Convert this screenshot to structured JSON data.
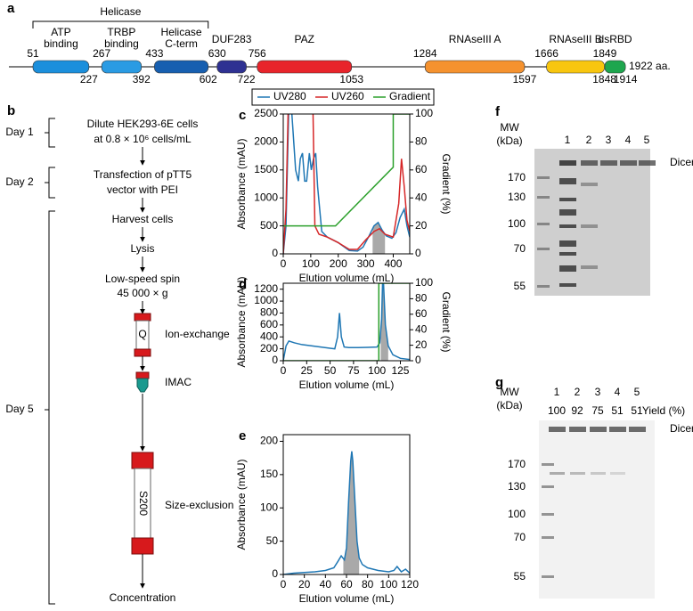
{
  "panel_a": {
    "label": "a",
    "group_label": "Helicase",
    "length_label": "1922 aa.",
    "domains": [
      {
        "name_lines": [
          "ATP",
          "binding"
        ],
        "start": 51,
        "end": 227,
        "color": "#1b8fdc"
      },
      {
        "name_lines": [
          "TRBP",
          "binding"
        ],
        "start": 267,
        "end": 392,
        "color": "#2a9be3"
      },
      {
        "name_lines": [
          "Helicase",
          "C-term"
        ],
        "start": 433,
        "end": 602,
        "color": "#175fb0"
      },
      {
        "name_lines": [
          "DUF283"
        ],
        "start": 630,
        "end": 722,
        "color": "#2e3192"
      },
      {
        "name_lines": [
          "PAZ"
        ],
        "start": 756,
        "end": 1053,
        "color": "#e8242b"
      },
      {
        "name_lines": [
          "RNAseIII A"
        ],
        "start": 1284,
        "end": 1597,
        "color": "#f5922f"
      },
      {
        "name_lines": [
          "RNAseIII B"
        ],
        "start": 1666,
        "end": 1848,
        "color": "#f8c60f"
      },
      {
        "name_lines": [
          "dsRBD"
        ],
        "start": 1849,
        "end": 1914,
        "color": "#1ea64e"
      }
    ]
  },
  "panel_b": {
    "label": "b",
    "column_labels": [
      "Q",
      "S200"
    ],
    "stages": [
      {
        "day": "Day 1",
        "steps": [
          [
            "Dilute HEK293-6E cells",
            "at 0.8 × 10⁶ cells/mL"
          ]
        ]
      },
      {
        "day": "Day 2",
        "steps": [
          [
            "Transfection of pTT5",
            "vector with PEI"
          ]
        ]
      },
      {
        "day": "Day 5",
        "steps": [
          [
            "Harvest cells"
          ],
          [
            "Lysis"
          ],
          [
            "Low-speed spin",
            "45 000 × g"
          ],
          [
            "Ion-exchange"
          ],
          [
            "IMAC"
          ],
          [
            "Size-exclusion"
          ],
          [
            "Concentration"
          ]
        ]
      }
    ]
  },
  "chart_data": [
    {
      "type": "line",
      "panel_label": "c",
      "xlabel": "Elution volume (mL)",
      "ylabel": "Absorbance (mAU)",
      "y2label": "Gradient (%)",
      "xlim": [
        0,
        460
      ],
      "xticks": [
        0,
        100,
        200,
        300,
        400
      ],
      "ylim": [
        0,
        2500
      ],
      "yticks": [
        0,
        500,
        1000,
        1500,
        2000,
        2500
      ],
      "y2lim": [
        0,
        100
      ],
      "y2ticks": [
        0,
        20,
        40,
        60,
        80,
        100
      ],
      "legend": "top",
      "shade": [
        325,
        370
      ],
      "series": [
        {
          "name": "UV280",
          "color": "#1f77b4",
          "x": [
            0,
            10,
            20,
            30,
            45,
            55,
            62,
            70,
            78,
            85,
            95,
            102,
            110,
            118,
            125,
            140,
            160,
            200,
            240,
            270,
            290,
            310,
            330,
            345,
            360,
            375,
            395,
            410,
            425,
            440,
            450,
            460
          ],
          "values": [
            0,
            500,
            2600,
            2600,
            1500,
            1300,
            1700,
            1800,
            1300,
            1300,
            1800,
            1500,
            1700,
            1800,
            1200,
            400,
            300,
            200,
            60,
            50,
            120,
            300,
            500,
            560,
            420,
            320,
            280,
            380,
            650,
            800,
            500,
            300
          ]
        },
        {
          "name": "UV260",
          "color": "#d62728",
          "x": [
            0,
            10,
            18,
            30,
            50,
            70,
            90,
            100,
            108,
            115,
            130,
            160,
            200,
            240,
            270,
            300,
            330,
            350,
            370,
            400,
            420,
            430,
            440,
            450,
            460
          ],
          "values": [
            0,
            800,
            2600,
            2600,
            2600,
            2600,
            2600,
            2600,
            2600,
            500,
            350,
            300,
            200,
            80,
            80,
            250,
            400,
            450,
            350,
            300,
            900,
            1700,
            1200,
            600,
            400
          ]
        },
        {
          "name": "Gradient",
          "color": "#2ca02c",
          "axis": "y2",
          "x": [
            0,
            190,
            400,
            400,
            460
          ],
          "values": [
            20,
            20,
            62,
            100,
            100
          ]
        }
      ]
    },
    {
      "type": "line",
      "panel_label": "d",
      "xlabel": "Elution volume (mL)",
      "ylabel": "Absorbance (mAU)",
      "y2label": "Gradient (%)",
      "xlim": [
        0,
        135
      ],
      "xticks": [
        0,
        25,
        50,
        75,
        100,
        125
      ],
      "ylim": [
        0,
        1300
      ],
      "yticks": [
        0,
        200,
        400,
        600,
        800,
        1000,
        1200
      ],
      "y2lim": [
        0,
        100
      ],
      "y2ticks": [
        0,
        20,
        40,
        60,
        80,
        100
      ],
      "shade": [
        104,
        112
      ],
      "series": [
        {
          "color": "#1f77b4",
          "x": [
            0,
            3,
            6,
            12,
            20,
            30,
            40,
            50,
            55,
            58,
            60,
            62,
            65,
            70,
            80,
            90,
            100,
            103,
            105,
            106,
            107,
            109,
            112,
            117,
            125,
            135
          ],
          "values": [
            0,
            250,
            330,
            300,
            270,
            250,
            230,
            210,
            200,
            400,
            800,
            400,
            230,
            220,
            220,
            225,
            230,
            300,
            700,
            1300,
            1300,
            600,
            250,
            100,
            40,
            20
          ]
        },
        {
          "color": "#2ca02c",
          "axis": "y2",
          "x": [
            0,
            102,
            102,
            135
          ],
          "values": [
            0,
            0,
            100,
            100
          ]
        }
      ]
    },
    {
      "type": "line",
      "panel_label": "e",
      "xlabel": "Elution volume (mL)",
      "ylabel": "Absorbance (mAU)",
      "xlim": [
        0,
        120
      ],
      "xticks": [
        0,
        20,
        40,
        60,
        80,
        100,
        120
      ],
      "ylim": [
        0,
        210
      ],
      "yticks": [
        0,
        50,
        100,
        150,
        200
      ],
      "shade": [
        57,
        72
      ],
      "series": [
        {
          "color": "#1f77b4",
          "x": [
            0,
            10,
            20,
            30,
            40,
            48,
            52,
            55,
            58,
            60,
            62,
            64,
            65,
            66,
            68,
            70,
            72,
            75,
            80,
            90,
            100,
            105,
            108,
            112,
            116,
            120
          ],
          "values": [
            0,
            2,
            3,
            4,
            6,
            10,
            20,
            28,
            22,
            40,
            110,
            170,
            185,
            170,
            110,
            50,
            25,
            15,
            10,
            6,
            4,
            6,
            12,
            4,
            8,
            2
          ]
        }
      ]
    }
  ],
  "panel_f": {
    "label": "f",
    "mw_label": [
      "MW",
      "(kDa)"
    ],
    "lanes": [
      1,
      2,
      3,
      4,
      5
    ],
    "markers": [
      170,
      130,
      100,
      70,
      55
    ],
    "band_label": "Dicer"
  },
  "panel_g": {
    "label": "g",
    "mw_label": [
      "MW",
      "(kDa)"
    ],
    "lanes": [
      1,
      2,
      3,
      4,
      5
    ],
    "yields": [
      100,
      92,
      75,
      51,
      51
    ],
    "yield_label": "Yield (%)",
    "markers": [
      170,
      130,
      100,
      70,
      55
    ],
    "band_label": "Dicer"
  }
}
